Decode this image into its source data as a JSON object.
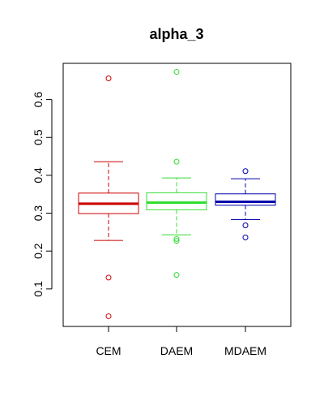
{
  "chart_data": {
    "type": "boxplot",
    "title": "alpha_3",
    "xlabel": "",
    "ylabel": "",
    "ylim": [
      0,
      0.7
    ],
    "yticks": [
      0.1,
      0.2,
      0.3,
      0.4,
      0.5,
      0.6
    ],
    "ytick_labels": [
      "0.1",
      "0.2",
      "0.3",
      "0.4",
      "0.5",
      "0.6"
    ],
    "grid": false,
    "categories": [
      "CEM",
      "DAEM",
      "MDAEM"
    ],
    "series": [
      {
        "category": "CEM",
        "color": "#cc0000",
        "whisker_low": 0.228,
        "q1": 0.299,
        "median": 0.325,
        "q3": 0.353,
        "whisker_high": 0.436,
        "outliers": [
          0.656,
          0.13,
          0.028
        ]
      },
      {
        "category": "DAEM",
        "color": "#33dd33",
        "whisker_low": 0.243,
        "q1": 0.309,
        "median": 0.328,
        "q3": 0.354,
        "whisker_high": 0.393,
        "outliers": [
          0.673,
          0.436,
          0.232,
          0.227,
          0.137
        ]
      },
      {
        "category": "MDAEM",
        "color": "#0000aa",
        "whisker_low": 0.283,
        "q1": 0.321,
        "median": 0.33,
        "q3": 0.351,
        "whisker_high": 0.391,
        "outliers": [
          0.411,
          0.268,
          0.236
        ]
      }
    ]
  }
}
